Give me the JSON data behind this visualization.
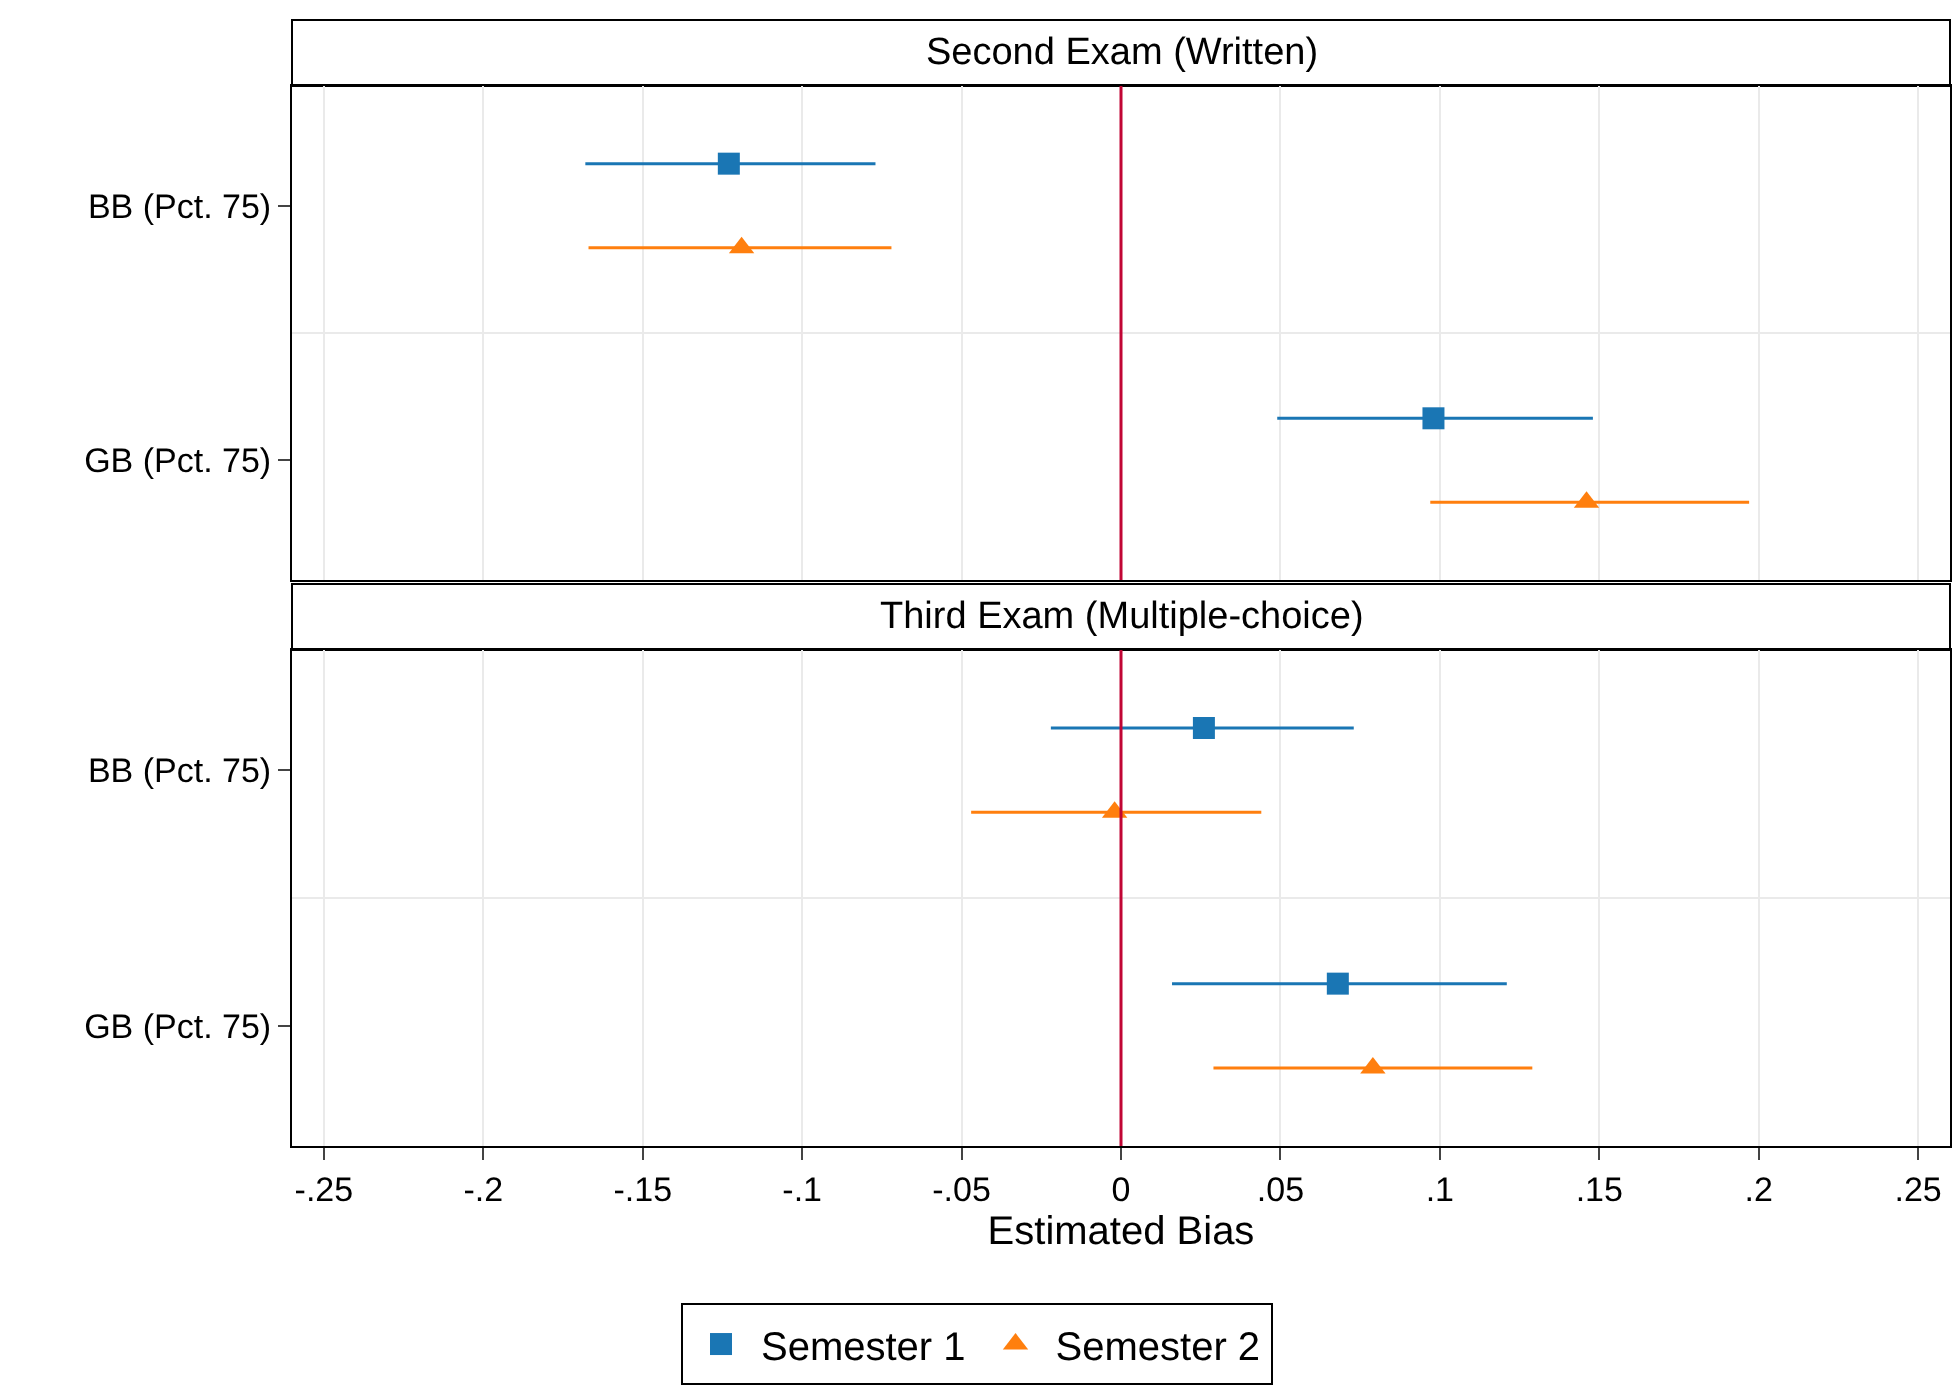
{
  "chart_data": [
    {
      "type": "scatter",
      "title": "Second Exam (Written)",
      "orientation": "horizontal",
      "categories": [
        "BB (Pct. 75)",
        "GB (Pct. 75)"
      ],
      "xlim": [
        -0.26,
        0.26
      ],
      "xticks": [
        -0.25,
        -0.2,
        -0.15,
        -0.1,
        -0.05,
        0,
        0.05,
        0.1,
        0.15,
        0.2,
        0.25
      ],
      "tick_labels": "y",
      "grid": true,
      "legend": "bottom",
      "series": [
        {
          "name": "Semester 1",
          "color": "#1a76b4",
          "marker": "square",
          "values": [
            -0.123,
            0.098
          ],
          "errors": [
            [
              -0.168,
              -0.077
            ],
            [
              0.049,
              0.148
            ]
          ]
        },
        {
          "name": "Semester 2",
          "color": "#ff7f0e",
          "marker": "triangle",
          "values": [
            -0.119,
            0.146
          ],
          "errors": [
            [
              -0.167,
              -0.072
            ],
            [
              0.097,
              0.197
            ]
          ]
        }
      ],
      "ref_lines": [
        {
          "axis": "x",
          "value": 0,
          "color": "#c10534"
        }
      ]
    },
    {
      "type": "scatter",
      "title": "Third Exam (Multiple-choice)",
      "orientation": "horizontal",
      "categories": [
        "BB (Pct. 75)",
        "GB (Pct. 75)"
      ],
      "xlabel": "Estimated Bias",
      "xlim": [
        -0.26,
        0.26
      ],
      "xticks": [
        {
          "value": -0.25,
          "label": "-.25"
        },
        {
          "value": -0.2,
          "label": "-.2"
        },
        {
          "value": -0.15,
          "label": "-.15"
        },
        {
          "value": -0.1,
          "label": "-.1"
        },
        {
          "value": -0.05,
          "label": "-.05"
        },
        {
          "value": 0,
          "label": "0"
        },
        {
          "value": 0.05,
          "label": ".05"
        },
        {
          "value": 0.1,
          "label": ".1"
        },
        {
          "value": 0.15,
          "label": ".15"
        },
        {
          "value": 0.2,
          "label": ".2"
        },
        {
          "value": 0.25,
          "label": ".25"
        }
      ],
      "grid": true,
      "legend": "bottom",
      "series": [
        {
          "name": "Semester 1",
          "color": "#1a76b4",
          "marker": "square",
          "values": [
            0.026,
            0.068
          ],
          "errors": [
            [
              -0.022,
              0.073
            ],
            [
              0.016,
              0.121
            ]
          ]
        },
        {
          "name": "Semester 2",
          "color": "#ff7f0e",
          "marker": "triangle",
          "values": [
            -0.002,
            0.079
          ],
          "errors": [
            [
              -0.047,
              0.044
            ],
            [
              0.029,
              0.129
            ]
          ]
        }
      ],
      "ref_lines": [
        {
          "axis": "x",
          "value": 0,
          "color": "#c10534"
        }
      ]
    }
  ]
}
